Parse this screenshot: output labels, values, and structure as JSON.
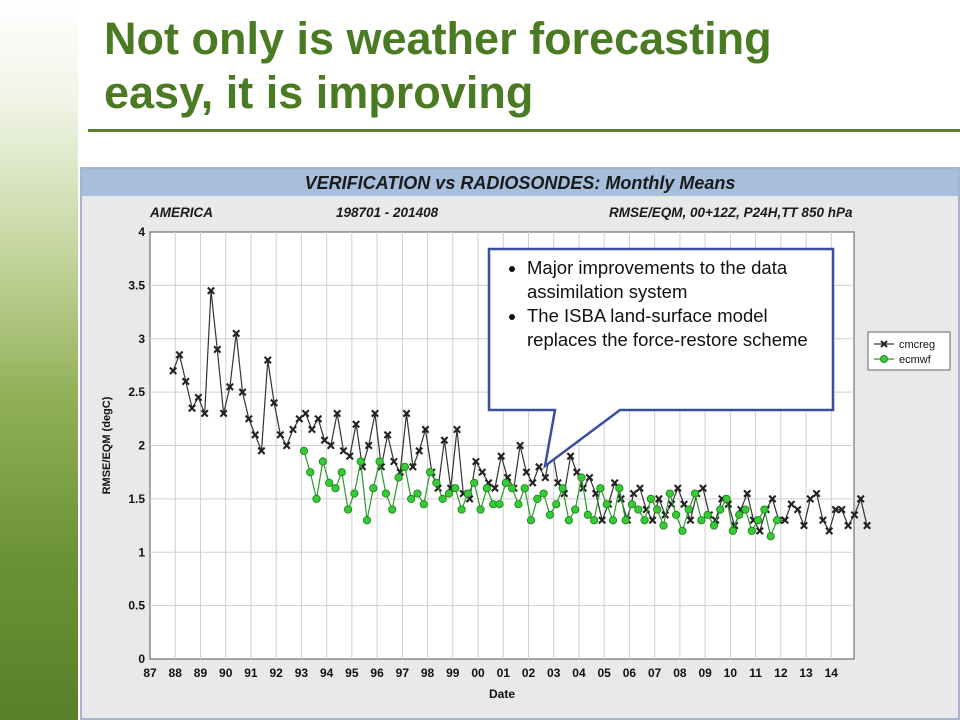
{
  "slide": {
    "title_line1": "Not only is weather forecasting",
    "title_line2": "easy, it is improving",
    "accent_color": "#4a7a22"
  },
  "callout": {
    "bullets": [
      "Major improvements to the data assimilation system",
      "The ISBA land-surface model replaces the force-restore scheme"
    ]
  },
  "chart_data": {
    "type": "line",
    "title": "VERIFICATION vs RADIOSONDES: Monthly Means",
    "region": "AMERICA",
    "period": "198701 - 201408",
    "parameters": "RMSE/EQM, 00+12Z, P24H,TT 850 hPa",
    "xlabel": "Date",
    "ylabel": "RMSE/EQM (degC)",
    "xlim": [
      1987,
      2014.9
    ],
    "ylim": [
      0,
      4
    ],
    "x_ticks": [
      "87",
      "88",
      "89",
      "90",
      "91",
      "92",
      "93",
      "94",
      "95",
      "96",
      "97",
      "98",
      "99",
      "00",
      "01",
      "02",
      "03",
      "04",
      "05",
      "06",
      "07",
      "08",
      "09",
      "10",
      "11",
      "12",
      "13",
      "14"
    ],
    "y_ticks": [
      "0",
      "0.5",
      "1",
      "1.5",
      "2",
      "2.5",
      "3",
      "3.5",
      "4"
    ],
    "grid": true,
    "legend_position": "right",
    "series": [
      {
        "name": "cmcreg",
        "marker": "x",
        "color": "#222222",
        "x_start": 1987.917,
        "x_step": 0.25,
        "values": [
          2.7,
          2.85,
          2.6,
          2.35,
          2.45,
          2.3,
          3.45,
          2.9,
          2.3,
          2.55,
          3.05,
          2.5,
          2.25,
          2.1,
          1.95,
          2.8,
          2.4,
          2.1,
          2.0,
          2.15,
          2.25,
          2.3,
          2.15,
          2.25,
          2.05,
          2.0,
          2.3,
          1.95,
          1.9,
          2.2,
          1.8,
          2.0,
          2.3,
          1.8,
          2.1,
          1.85,
          1.75,
          2.3,
          1.8,
          1.95,
          2.15,
          1.75,
          1.6,
          2.05,
          1.6,
          2.15,
          1.55,
          1.5,
          1.85,
          1.75,
          1.65,
          1.6,
          1.9,
          1.7,
          1.6,
          2.0,
          1.75,
          1.65,
          1.8,
          1.7,
          2.0,
          1.65,
          1.55,
          1.9,
          1.75,
          1.6,
          1.7,
          1.55,
          1.3,
          1.45,
          1.65,
          1.5,
          1.3,
          1.55,
          1.6,
          1.4,
          1.3,
          1.5,
          1.35,
          1.45,
          1.6,
          1.45,
          1.3,
          1.55,
          1.6,
          1.35,
          1.3,
          1.5,
          1.45,
          1.25,
          1.4,
          1.55,
          1.3,
          1.2,
          1.4,
          1.5,
          1.3,
          1.3,
          1.45,
          1.4,
          1.25,
          1.5,
          1.55,
          1.3,
          1.2,
          1.4,
          1.4,
          1.25,
          1.35,
          1.5,
          1.25
        ]
      },
      {
        "name": "ecmwf",
        "marker": "circle",
        "color": "#33cc33",
        "x_start": 1993.1,
        "x_step": 0.25,
        "values": [
          1.95,
          1.75,
          1.5,
          1.85,
          1.65,
          1.6,
          1.75,
          1.4,
          1.55,
          1.85,
          1.3,
          1.6,
          1.85,
          1.55,
          1.4,
          1.7,
          1.8,
          1.5,
          1.55,
          1.45,
          1.75,
          1.65,
          1.5,
          1.55,
          1.6,
          1.4,
          1.55,
          1.65,
          1.4,
          1.6,
          1.45,
          1.45,
          1.65,
          1.6,
          1.45,
          1.6,
          1.3,
          1.5,
          1.55,
          1.35,
          1.45,
          1.6,
          1.3,
          1.4,
          1.7,
          1.35,
          1.3,
          1.6,
          1.45,
          1.3,
          1.6,
          1.3,
          1.45,
          1.4,
          1.3,
          1.5,
          1.4,
          1.25,
          1.55,
          1.35,
          1.2,
          1.4,
          1.55,
          1.3,
          1.35,
          1.25,
          1.4,
          1.5,
          1.2,
          1.35,
          1.4,
          1.2,
          1.3,
          1.4,
          1.15,
          1.3
        ]
      }
    ]
  }
}
